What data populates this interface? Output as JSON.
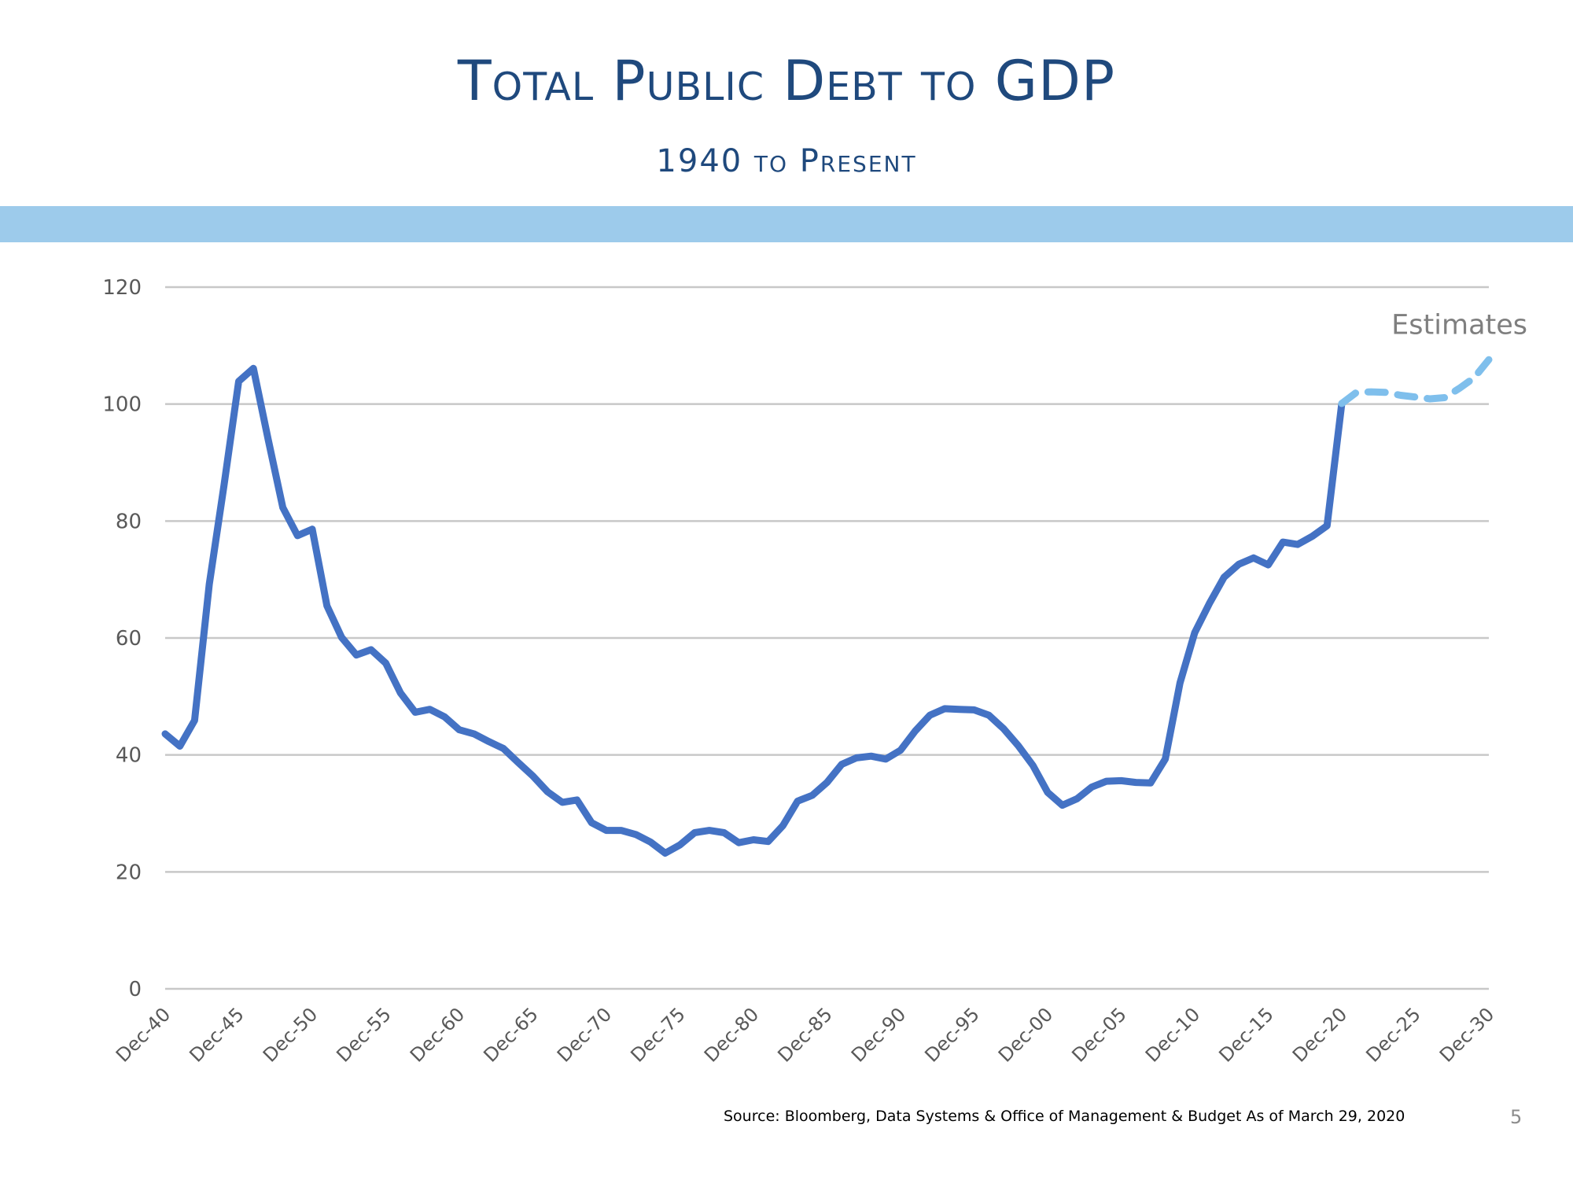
{
  "title": "Total Public Debt to GDP",
  "subtitle": "1940 to Present",
  "source": "Source:  Bloomberg, Data Systems & Office of Management & Budget As of March 29, 2020",
  "page_number": "5",
  "colors": {
    "title": "#1f497d",
    "band": "#9dcbeb",
    "actual_line": "#4472c4",
    "estimate_line": "#7fbfec",
    "gridline": "#c8c8c8",
    "axis_text": "#595959"
  },
  "chart_data": {
    "type": "line",
    "title": "",
    "xlabel": "",
    "ylabel": "",
    "ylim": [
      0,
      120
    ],
    "yticks": [
      0,
      20,
      40,
      60,
      80,
      100,
      120
    ],
    "xlim": [
      1940,
      2030
    ],
    "grid": true,
    "xtick_labels": [
      {
        "year": 1940,
        "label": "Dec-40"
      },
      {
        "year": 1945,
        "label": "Dec-45"
      },
      {
        "year": 1950,
        "label": "Dec-50"
      },
      {
        "year": 1955,
        "label": "Dec-55"
      },
      {
        "year": 1960,
        "label": "Dec-60"
      },
      {
        "year": 1965,
        "label": "Dec-65"
      },
      {
        "year": 1970,
        "label": "Dec-70"
      },
      {
        "year": 1975,
        "label": "Dec-75"
      },
      {
        "year": 1980,
        "label": "Dec-80"
      },
      {
        "year": 1985,
        "label": "Dec-85"
      },
      {
        "year": 1990,
        "label": "Dec-90"
      },
      {
        "year": 1995,
        "label": "Dec-95"
      },
      {
        "year": 2000,
        "label": "Dec-00"
      },
      {
        "year": 2005,
        "label": "Dec-05"
      },
      {
        "year": 2010,
        "label": "Dec-10"
      },
      {
        "year": 2015,
        "label": "Dec-15"
      },
      {
        "year": 2020,
        "label": "Dec-20"
      },
      {
        "year": 2025,
        "label": "Dec-25"
      },
      {
        "year": 2030,
        "label": "Dec-30"
      }
    ],
    "annotations": [
      {
        "text": "Estimates",
        "x": 2028,
        "y": 112
      }
    ],
    "series": [
      {
        "style": "solid",
        "x": [
          1940,
          1941,
          1942,
          1943,
          1944,
          1945,
          1946,
          1947,
          1948,
          1949,
          1950,
          1951,
          1952,
          1953,
          1954,
          1955,
          1956,
          1957,
          1958,
          1959,
          1960,
          1961,
          1962,
          1963,
          1964,
          1965,
          1966,
          1967,
          1968,
          1969,
          1970,
          1971,
          1972,
          1973,
          1974,
          1975,
          1976,
          1977,
          1978,
          1979,
          1980,
          1981,
          1982,
          1983,
          1984,
          1985,
          1986,
          1987,
          1988,
          1989,
          1990,
          1991,
          1992,
          1993,
          1994,
          1995,
          1996,
          1997,
          1998,
          1999,
          2000,
          2001,
          2002,
          2003,
          2004,
          2005,
          2006,
          2007,
          2008,
          2009,
          2010,
          2011,
          2012,
          2013,
          2014,
          2015,
          2016,
          2017,
          2018,
          2019,
          2020
        ],
        "y": [
          43.6,
          41.5,
          45.9,
          69.2,
          86.1,
          103.9,
          106.1,
          94.0,
          82.3,
          77.5,
          78.6,
          65.5,
          60.1,
          57.1,
          58.0,
          55.7,
          50.6,
          47.3,
          47.8,
          46.5,
          44.3,
          43.6,
          42.3,
          41.1,
          38.7,
          36.4,
          33.7,
          31.9,
          32.3,
          28.4,
          27.1,
          27.1,
          26.4,
          25.1,
          23.2,
          24.6,
          26.7,
          27.1,
          26.7,
          25.0,
          25.5,
          25.2,
          27.9,
          32.1,
          33.1,
          35.3,
          38.4,
          39.5,
          39.8,
          39.3,
          40.8,
          44.1,
          46.8,
          47.9,
          47.8,
          47.7,
          46.8,
          44.5,
          41.6,
          38.2,
          33.6,
          31.4,
          32.5,
          34.5,
          35.5,
          35.6,
          35.3,
          35.2,
          39.3,
          52.3,
          60.9,
          65.9,
          70.4,
          72.6,
          73.7,
          72.5,
          76.4,
          76.0,
          77.4,
          79.2,
          100.1
        ]
      },
      {
        "style": "dashed",
        "x": [
          2020,
          2021,
          2022,
          2023,
          2024,
          2025,
          2026,
          2027,
          2028,
          2029,
          2030
        ],
        "y": [
          100.1,
          102.0,
          102.1,
          102.0,
          101.5,
          101.2,
          100.9,
          101.1,
          102.7,
          104.5,
          107.6
        ]
      }
    ]
  }
}
